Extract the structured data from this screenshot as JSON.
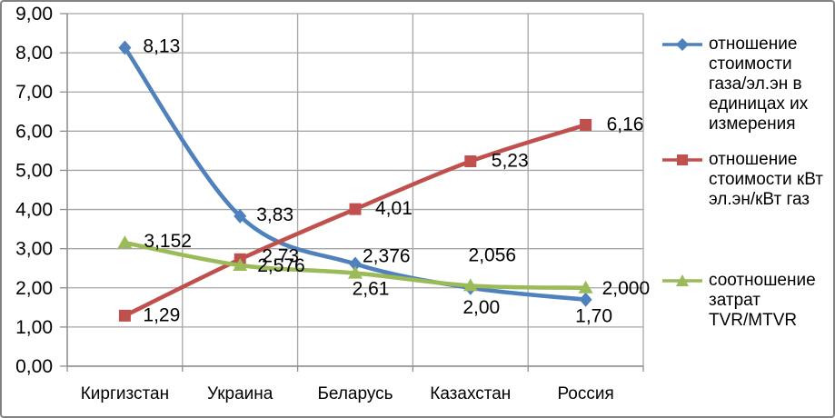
{
  "chart_data": {
    "type": "line",
    "title": "",
    "categories": [
      "Киргизстан",
      "Украина",
      "Беларусь",
      "Казахстан",
      "Россия"
    ],
    "ylim": [
      0,
      9
    ],
    "ytick_step": 1,
    "ytick_labels": [
      "0,00",
      "1,00",
      "2,00",
      "3,00",
      "4,00",
      "5,00",
      "6,00",
      "7,00",
      "8,00",
      "9,00"
    ],
    "grid": true,
    "smooth_lines": true,
    "legend_position": "right",
    "series": [
      {
        "name": "отношение стоимости газа/эл.эн в единицах их измерения",
        "legend_lines": [
          "отношение",
          "стоимости",
          "газа/эл.эн в",
          "единицах их",
          "измерения"
        ],
        "color": "#4F81BD",
        "marker": "diamond",
        "values": [
          8.13,
          3.83,
          2.61,
          2.0,
          1.7
        ],
        "point_labels": [
          "8,13",
          "3,83",
          "2,61",
          "2,00",
          "1,70"
        ]
      },
      {
        "name": "отношение стоимости кВт эл.эн/кВт газ",
        "legend_lines": [
          "отношение",
          "стоимости кВт",
          "эл.эн/кВт газ"
        ],
        "color": "#C0504D",
        "marker": "square",
        "values": [
          1.29,
          2.73,
          4.01,
          5.23,
          6.16
        ],
        "point_labels": [
          "1,29",
          "2,73",
          "4,01",
          "5,23",
          "6,16"
        ]
      },
      {
        "name": "соотношение затрат TVR/MTVR",
        "legend_lines": [
          "соотношение",
          "затрат",
          "TVR/MTVR"
        ],
        "color": "#9BBB59",
        "marker": "triangle",
        "values": [
          3.152,
          2.576,
          2.376,
          2.056,
          2.0
        ],
        "point_labels": [
          "3,152",
          "2,576",
          "2,376",
          "2,056",
          "2,000"
        ]
      }
    ]
  }
}
